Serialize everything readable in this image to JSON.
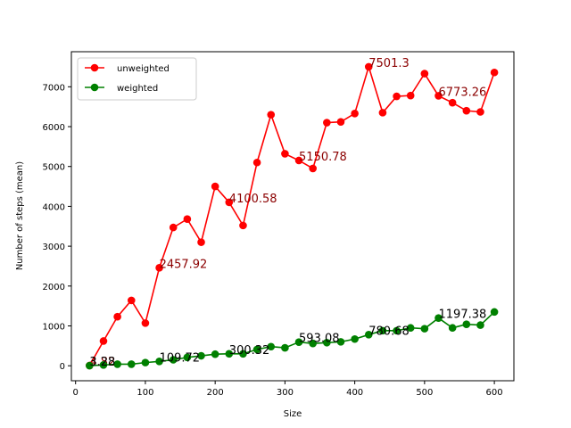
{
  "chart_data": {
    "type": "line",
    "title": "",
    "xlabel": "Size",
    "ylabel": "Number of steps (mean)",
    "xlim": [
      -6,
      628
    ],
    "ylim": [
      -376,
      7880
    ],
    "xticks": [
      0,
      100,
      200,
      300,
      400,
      500,
      600
    ],
    "yticks": [
      0,
      1000,
      2000,
      3000,
      4000,
      5000,
      6000,
      7000
    ],
    "grid": false,
    "legend_position": "top-left",
    "x": [
      20,
      40,
      60,
      80,
      100,
      120,
      140,
      160,
      180,
      200,
      220,
      240,
      260,
      280,
      300,
      320,
      340,
      360,
      380,
      400,
      420,
      440,
      460,
      480,
      500,
      520,
      540,
      560,
      580,
      600
    ],
    "series": [
      {
        "name": "unweighted",
        "color": "#ff0000",
        "label_color": "#8b0000",
        "values": [
          4.82,
          620,
          1230,
          1640,
          1070,
          2457.92,
          3470,
          3680,
          3100,
          4500,
          4100.58,
          3520,
          5100,
          6300,
          5320,
          5150.78,
          4950,
          6100,
          6120,
          6330,
          7501.3,
          6350,
          6760,
          6780,
          7330,
          6773.26,
          6600,
          6400,
          6370,
          7360
        ],
        "annotations": [
          {
            "x": 20,
            "y": 4.82,
            "text": "4.82"
          },
          {
            "x": 120,
            "y": 2457.92,
            "text": "2457.92"
          },
          {
            "x": 220,
            "y": 4100.58,
            "text": "4100.58"
          },
          {
            "x": 320,
            "y": 5150.78,
            "text": "5150.78"
          },
          {
            "x": 420,
            "y": 7501.3,
            "text": "7501.3"
          },
          {
            "x": 520,
            "y": 6773.26,
            "text": "6773.26"
          }
        ]
      },
      {
        "name": "weighted",
        "color": "#008000",
        "label_color": "#000000",
        "values": [
          3.28,
          20,
          40,
          40,
          80,
          109.72,
          150,
          210,
          250,
          290,
          300.32,
          300,
          410,
          480,
          450,
          593.08,
          560,
          580,
          600,
          670,
          780.68,
          880,
          880,
          950,
          930,
          1197.38,
          950,
          1040,
          1020,
          1350
        ],
        "annotations": [
          {
            "x": 20,
            "y": 3.28,
            "text": "3.28"
          },
          {
            "x": 120,
            "y": 109.72,
            "text": "109.72"
          },
          {
            "x": 220,
            "y": 300.32,
            "text": "300.32"
          },
          {
            "x": 320,
            "y": 593.08,
            "text": "593.08"
          },
          {
            "x": 420,
            "y": 780.68,
            "text": "780.68"
          },
          {
            "x": 520,
            "y": 1197.38,
            "text": "1197.38"
          }
        ]
      }
    ]
  }
}
